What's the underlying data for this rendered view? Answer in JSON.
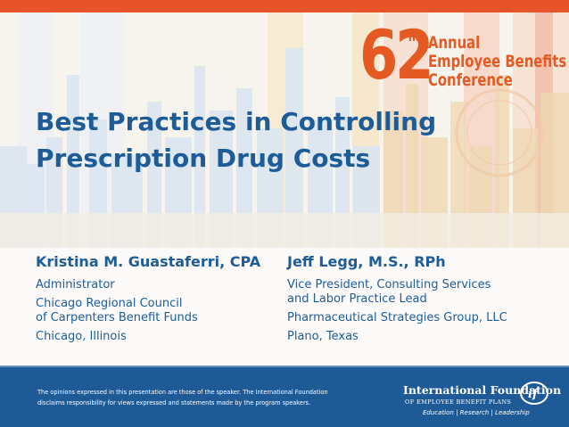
{
  "colors": {
    "title_blue": "#1d5c97",
    "accent_orange": "#e45a22",
    "footer_blue": "#1e5a96"
  },
  "conference": {
    "number": "62",
    "ordinal": "nd",
    "line1": "Annual",
    "line2": "Employee Benefits",
    "line3": "Conference"
  },
  "title": {
    "line1": "Best Practices in Controlling",
    "line2": "Prescription Drug Costs"
  },
  "speakers": [
    {
      "name": "Kristina M. Guastaferri, CPA",
      "role": "Administrator",
      "org_line1": "Chicago Regional Council",
      "org_line2": "of Carpenters Benefit Funds",
      "location": "Chicago, Illinois"
    },
    {
      "name": "Jeff Legg, M.S., RPh",
      "role_line1": "Vice President, Consulting Services",
      "role_line2": "and Labor Practice Lead",
      "org": "Pharmaceutical Strategies Group, LLC",
      "location": "Plano, Texas"
    }
  ],
  "footer": {
    "disclaimer_line1": "The opinions expressed in this presentation are those of the speaker. The International Foundation",
    "disclaimer_line2": "disclaims responsibility for views expressed and statements made by the program speakers.",
    "logo_name": "International Foundation",
    "logo_sub": "OF EMPLOYEE BENEFIT PLANS",
    "logo_tagline": "Education | Research | Leadership",
    "logo_mark_icon": "if-swoosh-logo"
  }
}
